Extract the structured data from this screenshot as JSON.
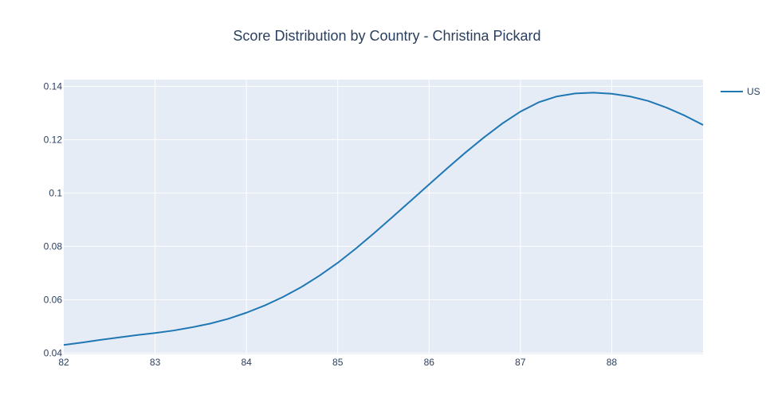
{
  "chart_data": {
    "type": "line",
    "title": "Score Distribution by Country - Christina Pickard",
    "xlabel": "",
    "ylabel": "",
    "xlim": [
      82,
      89
    ],
    "ylim": [
      0.0395,
      0.1425
    ],
    "x_ticks": [
      {
        "value": 82,
        "label": "82"
      },
      {
        "value": 83,
        "label": "83"
      },
      {
        "value": 84,
        "label": "84"
      },
      {
        "value": 85,
        "label": "85"
      },
      {
        "value": 86,
        "label": "86"
      },
      {
        "value": 87,
        "label": "87"
      },
      {
        "value": 88,
        "label": "88"
      }
    ],
    "y_ticks": [
      {
        "value": 0.04,
        "label": "0.04"
      },
      {
        "value": 0.06,
        "label": "0.06"
      },
      {
        "value": 0.08,
        "label": "0.08"
      },
      {
        "value": 0.1,
        "label": "0.1"
      },
      {
        "value": 0.12,
        "label": "0.12"
      },
      {
        "value": 0.14,
        "label": "0.14"
      }
    ],
    "grid": true,
    "legend_position": "top-right",
    "plot_background": "#e5ecf6",
    "grid_color": "#ffffff",
    "series": [
      {
        "name": "US",
        "color": "#1f77b4",
        "x": [
          82.0,
          82.2,
          82.4,
          82.6,
          82.8,
          83.0,
          83.2,
          83.4,
          83.6,
          83.8,
          84.0,
          84.2,
          84.4,
          84.6,
          84.8,
          85.0,
          85.2,
          85.4,
          85.6,
          85.8,
          86.0,
          86.2,
          86.4,
          86.6,
          86.8,
          87.0,
          87.2,
          87.4,
          87.6,
          87.8,
          88.0,
          88.2,
          88.4,
          88.6,
          88.8,
          89.0
        ],
        "y": [
          0.043,
          0.0439,
          0.0449,
          0.0458,
          0.0467,
          0.0475,
          0.0484,
          0.0496,
          0.051,
          0.0528,
          0.0551,
          0.0578,
          0.061,
          0.0647,
          0.069,
          0.0738,
          0.0792,
          0.085,
          0.091,
          0.0971,
          0.1032,
          0.1093,
          0.1152,
          0.1208,
          0.126,
          0.1305,
          0.134,
          0.1362,
          0.1373,
          0.1376,
          0.1372,
          0.1362,
          0.1345,
          0.132,
          0.129,
          0.1255
        ]
      }
    ]
  }
}
